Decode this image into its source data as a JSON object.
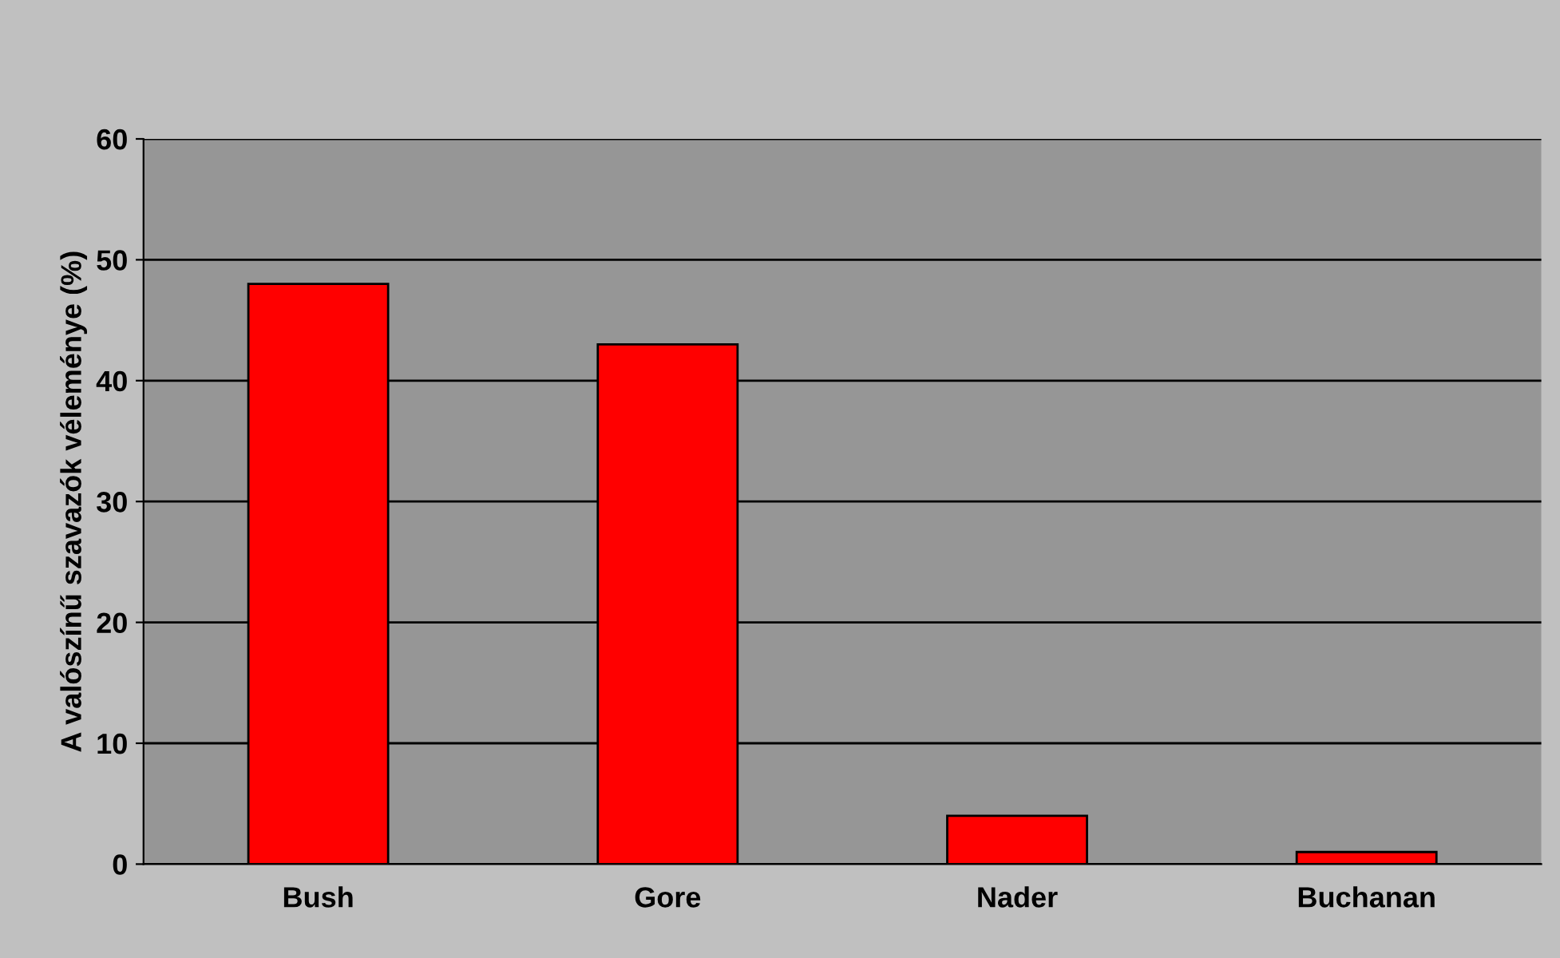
{
  "chart_data": {
    "type": "bar",
    "ylabel": "A valószínű szavazók véleménye (%)",
    "categories": [
      "Bush",
      "Gore",
      "Nader",
      "Buchanan"
    ],
    "values": [
      48,
      43,
      4,
      1
    ],
    "color": "#ff0000",
    "ylim": [
      0,
      60
    ],
    "yticks": [
      0,
      10,
      20,
      30,
      40,
      50,
      60
    ],
    "grid": "y"
  }
}
